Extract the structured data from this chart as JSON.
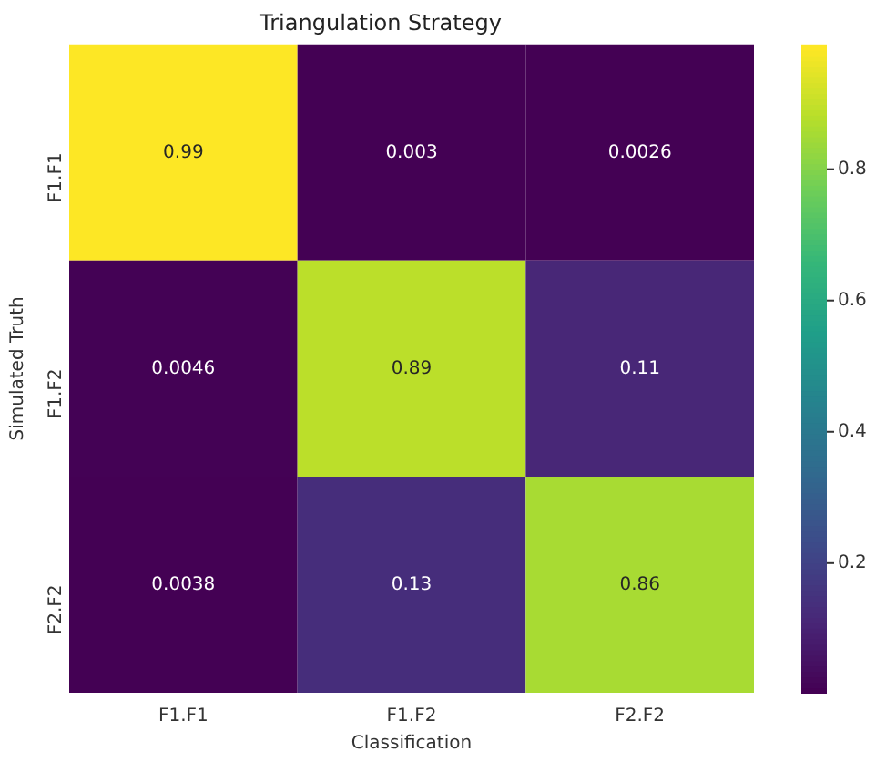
{
  "chart_data": {
    "type": "heatmap",
    "title": "Triangulation Strategy",
    "xlabel": "Classification",
    "ylabel": "Simulated Truth",
    "categories": [
      "F1.F1",
      "F1.F2",
      "F2.F2"
    ],
    "y_categories": [
      "F1.F1",
      "F1.F2",
      "F2.F2"
    ],
    "cells": [
      [
        0.99,
        0.003,
        0.0026
      ],
      [
        0.0046,
        0.89,
        0.11
      ],
      [
        0.0038,
        0.13,
        0.86
      ]
    ],
    "clim": [
      0.0026,
      0.99
    ],
    "cticks": [
      0.2,
      0.4,
      0.6,
      0.8
    ],
    "data_labels": true
  }
}
